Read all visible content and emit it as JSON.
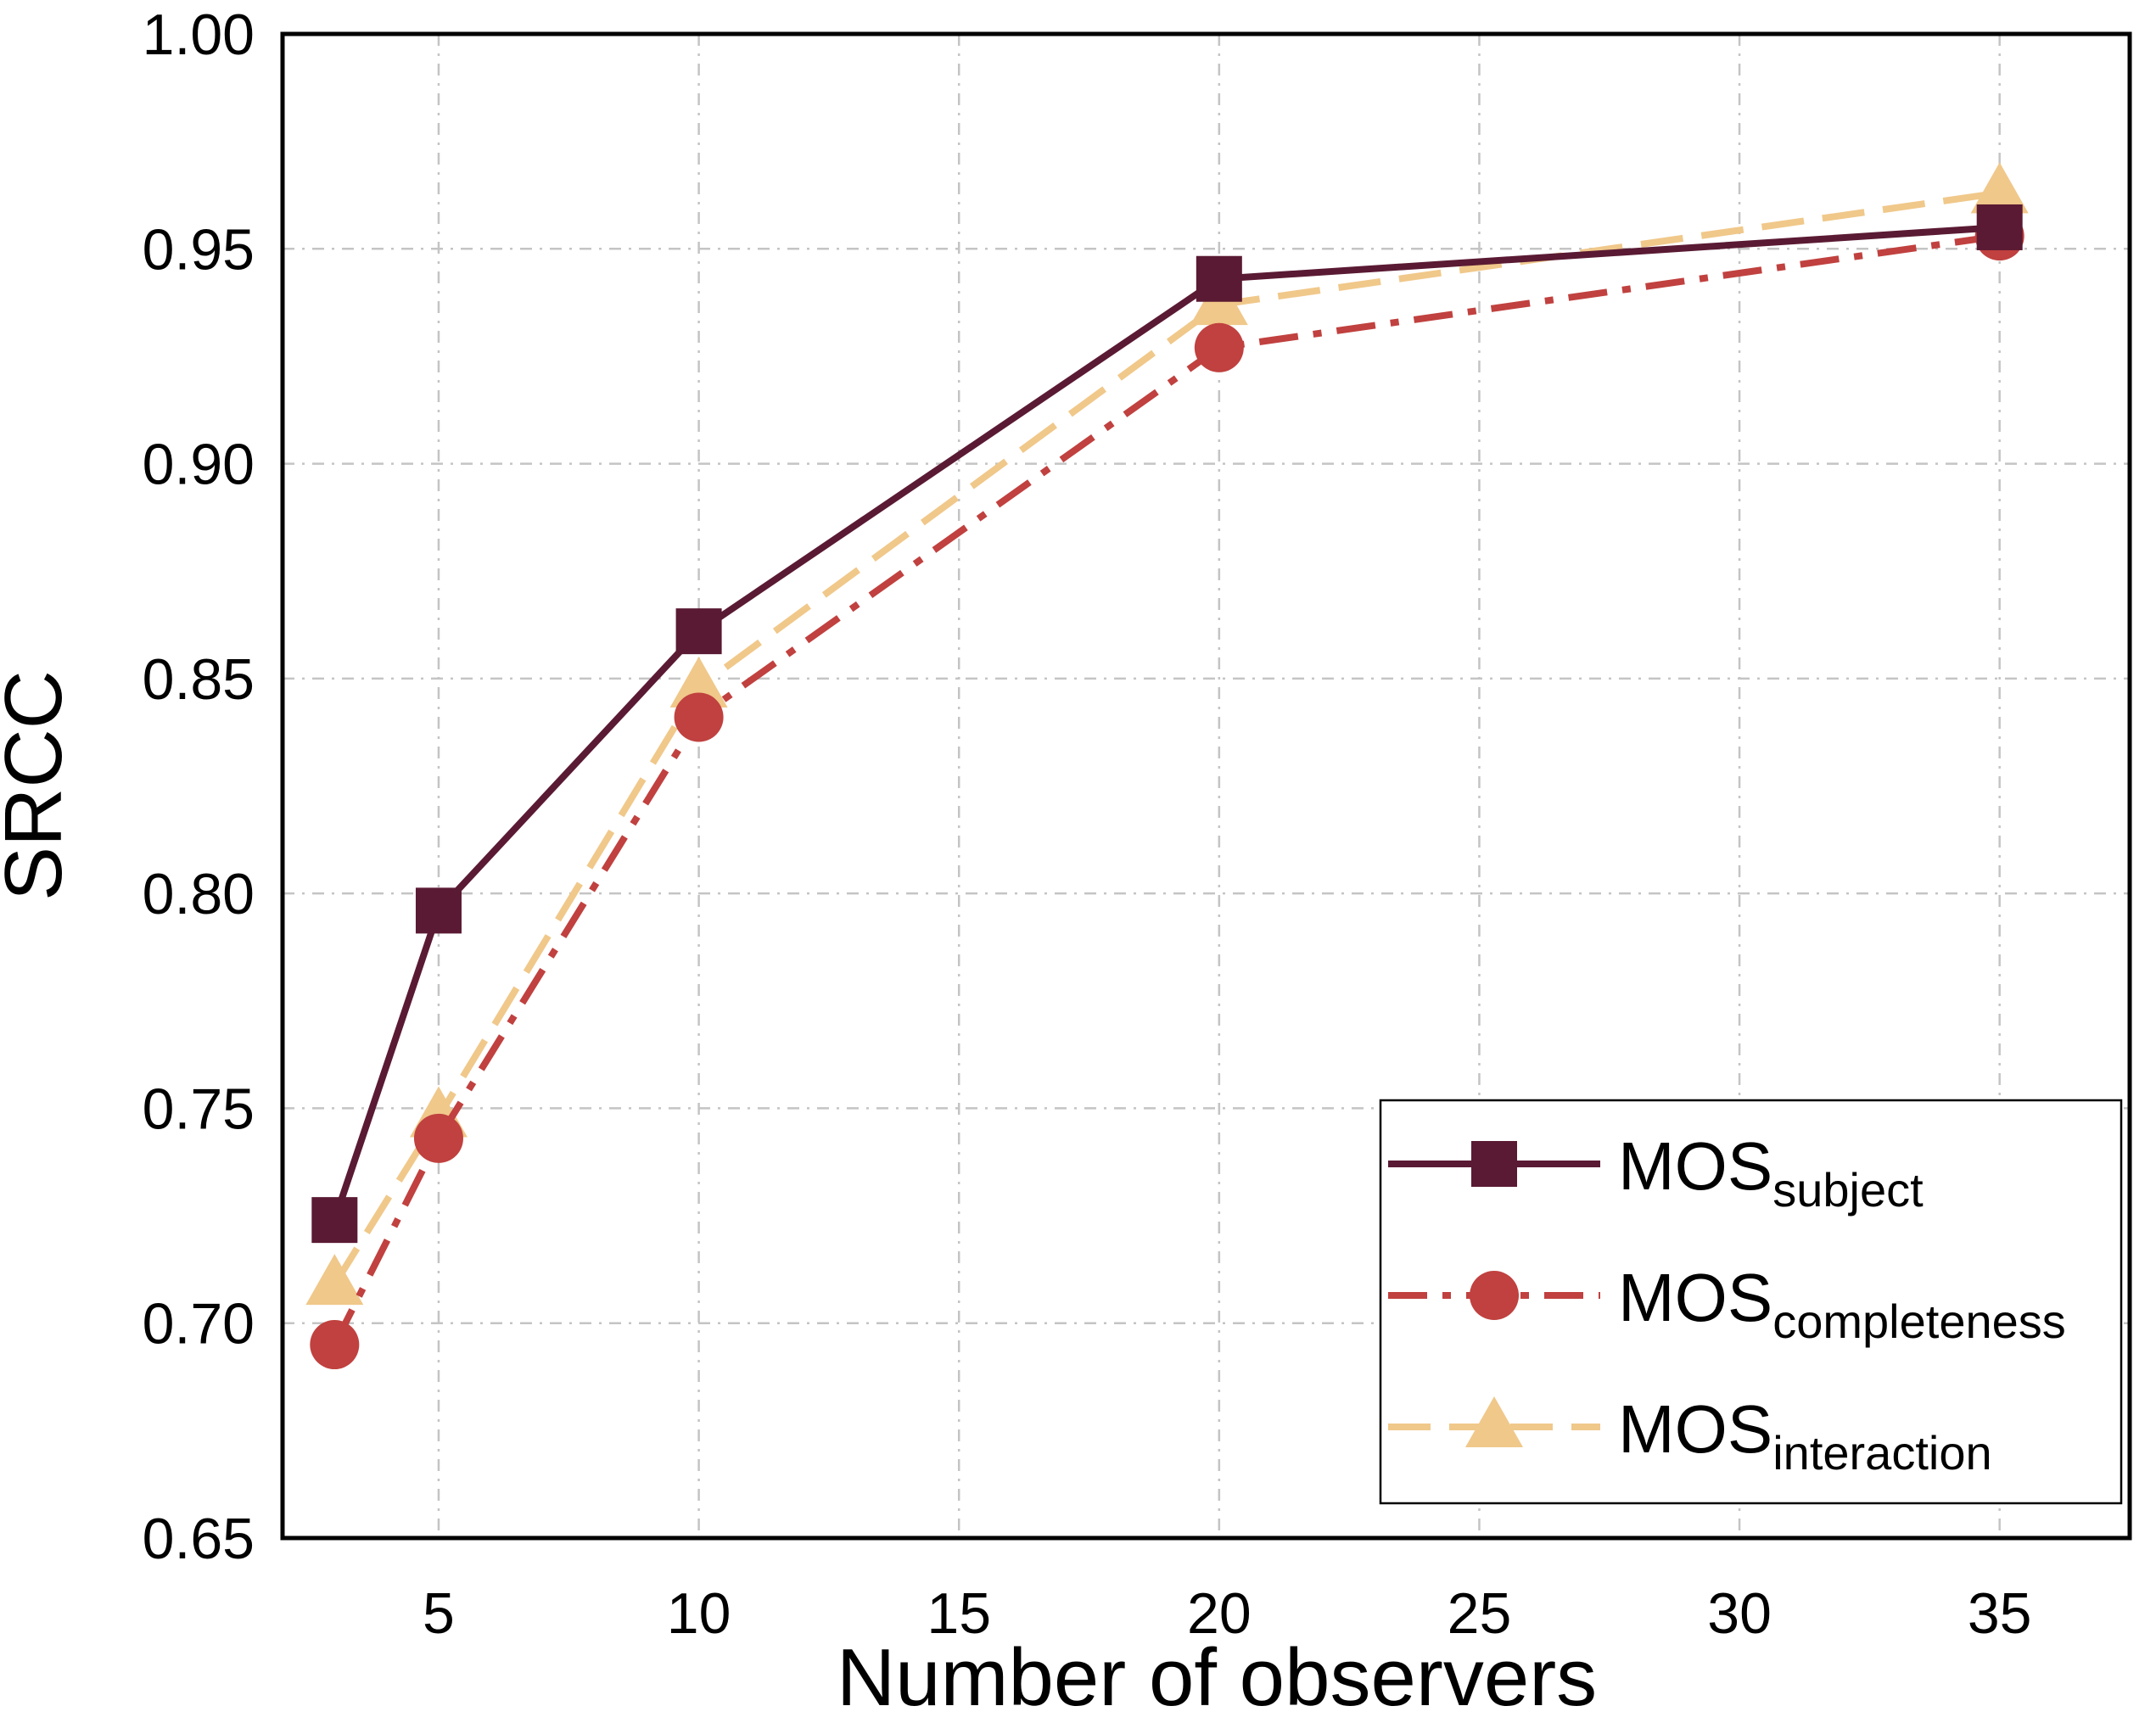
{
  "chart_data": {
    "type": "line",
    "title": "",
    "xlabel": "Number of observers",
    "ylabel": "SRCC",
    "xlim": [
      2,
      37.5
    ],
    "ylim": [
      0.65,
      1.0
    ],
    "xticks": [
      5,
      10,
      15,
      20,
      25,
      30,
      35
    ],
    "xtick_labels": [
      "5",
      "10",
      "15",
      "20",
      "25",
      "30",
      "35"
    ],
    "yticks": [
      0.65,
      0.7,
      0.75,
      0.8,
      0.85,
      0.9,
      0.95,
      1.0
    ],
    "ytick_labels": [
      "0.65",
      "0.70",
      "0.75",
      "0.80",
      "0.85",
      "0.90",
      "0.95",
      "1.00"
    ],
    "grid": true,
    "legend_position": "bottom-right",
    "x": [
      3,
      5,
      10,
      20,
      35
    ],
    "series": [
      {
        "name": "MOS",
        "subscript": "subject",
        "values": [
          0.724,
          0.796,
          0.861,
          0.943,
          0.955
        ],
        "color": "#5a1a33",
        "marker": "square",
        "dash": "solid"
      },
      {
        "name": "MOS",
        "subscript": "completeness",
        "values": [
          0.695,
          0.743,
          0.841,
          0.927,
          0.953
        ],
        "color": "#c0413f",
        "marker": "circle",
        "dash": "dashdot"
      },
      {
        "name": "MOS",
        "subscript": "interaction",
        "values": [
          0.709,
          0.748,
          0.848,
          0.937,
          0.963
        ],
        "color": "#f0c88a",
        "marker": "triangle",
        "dash": "dashed"
      }
    ]
  }
}
